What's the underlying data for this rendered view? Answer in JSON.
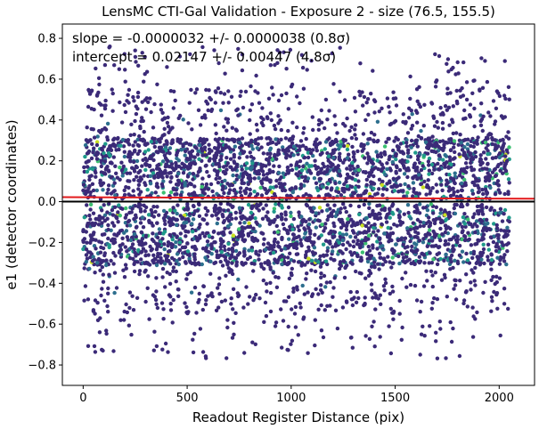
{
  "chart_data": {
    "type": "scatter",
    "title": "LensMC CTI-Gal Validation - Exposure 2 - size (76.5, 155.5)",
    "xlabel": "Readout Register Distance (pix)",
    "ylabel": "e1 (detector coordinates)",
    "xlim": [
      -100,
      2170
    ],
    "ylim": [
      -0.9,
      0.87
    ],
    "xticks": [
      0,
      500,
      1000,
      1500,
      2000
    ],
    "xtick_labels": [
      "0",
      "500",
      "1000",
      "1500",
      "2000"
    ],
    "yticks": [
      -0.8,
      -0.6,
      -0.4,
      -0.2,
      0.0,
      0.2,
      0.4,
      0.6,
      0.8
    ],
    "ytick_labels": [
      "−0.8",
      "−0.6",
      "−0.4",
      "−0.2",
      "0.0",
      "0.2",
      "0.4",
      "0.6",
      "0.8"
    ],
    "grid": false,
    "annotations": [
      "slope = -0.0000032 +/- 0.0000038 (0.8σ)",
      "intercept = 0.02147 +/- 0.00447 (4.8σ)"
    ],
    "fit_line": {
      "slope": -3.2e-06,
      "intercept": 0.02147,
      "color": "#e31a1c",
      "x_range": [
        -100,
        2170
      ]
    },
    "zero_line": {
      "y": 0.0,
      "color": "#000000"
    },
    "scatter": {
      "x_range": [
        0,
        2050
      ],
      "y_range": [
        -0.82,
        0.76
      ],
      "approx_points": 9000,
      "colormap": "viridis",
      "dominant_color": "#3b2a78",
      "secondary_colors": [
        "#2d6f8e",
        "#1f9a8a",
        "#3bbf70",
        "#c8e021"
      ]
    },
    "colors": {
      "marker_dark": "#3b2a78",
      "marker_mid": "#2d6f8e",
      "marker_teal": "#1f9a8a",
      "marker_green": "#3bbf70",
      "marker_yellow": "#c8e021",
      "fit_line": "#e31a1c",
      "zero_line": "#000000"
    }
  }
}
